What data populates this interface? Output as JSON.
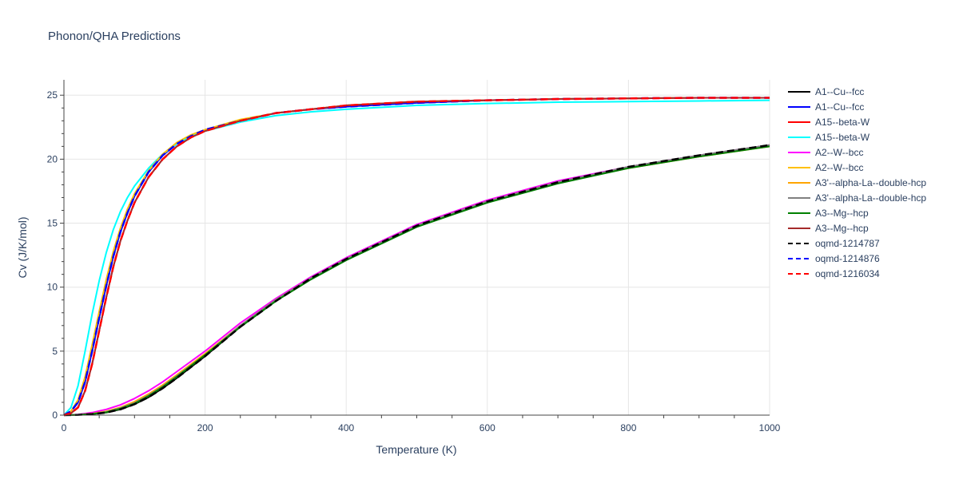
{
  "chart_data": {
    "type": "line",
    "title": "Phonon/QHA Predictions",
    "xlabel": "Temperature (K)",
    "ylabel": "Cv (J/K/mol)",
    "xlim": [
      0,
      1000
    ],
    "ylim": [
      0,
      26.2
    ],
    "xticks": [
      0,
      200,
      400,
      600,
      800,
      1000
    ],
    "yticks": [
      0,
      5,
      10,
      15,
      20,
      25
    ],
    "grid": true,
    "legend_position": "right",
    "series": [
      {
        "name": "A1--Cu--fcc",
        "color": "#000000",
        "dash": "solid",
        "x": [
          0,
          20,
          40,
          60,
          80,
          100,
          120,
          140,
          160,
          200,
          250,
          300,
          350,
          400,
          500,
          600,
          700,
          800,
          900,
          1000
        ],
        "y": [
          0,
          0.02,
          0.08,
          0.2,
          0.45,
          0.85,
          1.4,
          2.1,
          2.9,
          4.6,
          6.9,
          8.9,
          10.7,
          12.2,
          14.8,
          16.7,
          18.2,
          19.4,
          20.3,
          21.1
        ]
      },
      {
        "name": "A1--Cu--fcc",
        "color": "#0000ff",
        "dash": "solid",
        "x": [
          0,
          10,
          20,
          30,
          40,
          50,
          60,
          70,
          80,
          90,
          100,
          120,
          140,
          160,
          180,
          200,
          250,
          300,
          350,
          400,
          500,
          600,
          700,
          800,
          900,
          1000
        ],
        "y": [
          0,
          0.3,
          1.0,
          2.6,
          5.0,
          7.6,
          10.1,
          12.4,
          14.3,
          15.8,
          17.1,
          19.0,
          20.3,
          21.2,
          21.8,
          22.3,
          23.0,
          23.6,
          23.9,
          24.1,
          24.4,
          24.6,
          24.7,
          24.75,
          24.8,
          24.8
        ]
      },
      {
        "name": "A15--beta-W",
        "color": "#ff0000",
        "dash": "solid",
        "x": [
          0,
          10,
          20,
          30,
          40,
          50,
          60,
          70,
          80,
          90,
          100,
          120,
          140,
          160,
          180,
          200,
          250,
          300,
          350,
          400,
          500,
          600,
          700,
          800,
          900,
          1000
        ],
        "y": [
          0,
          0.15,
          0.6,
          1.9,
          4.0,
          6.6,
          9.2,
          11.6,
          13.6,
          15.2,
          16.6,
          18.6,
          20.0,
          21.0,
          21.7,
          22.2,
          23.0,
          23.6,
          23.9,
          24.2,
          24.5,
          24.6,
          24.7,
          24.75,
          24.8,
          24.8
        ]
      },
      {
        "name": "A15--beta-W",
        "color": "#00ffff",
        "dash": "solid",
        "x": [
          0,
          10,
          20,
          30,
          40,
          50,
          60,
          70,
          80,
          90,
          100,
          120,
          140,
          160,
          180,
          200,
          250,
          300,
          350,
          400,
          500,
          600,
          700,
          800,
          900,
          1000
        ],
        "y": [
          0,
          0.6,
          2.3,
          5.0,
          7.9,
          10.5,
          12.7,
          14.5,
          15.9,
          17.0,
          17.9,
          19.3,
          20.4,
          21.2,
          21.8,
          22.2,
          22.9,
          23.4,
          23.7,
          23.9,
          24.2,
          24.35,
          24.45,
          24.5,
          24.55,
          24.6
        ]
      },
      {
        "name": "A2--W--bcc",
        "color": "#ff00ff",
        "dash": "solid",
        "x": [
          0,
          20,
          40,
          60,
          80,
          100,
          120,
          140,
          160,
          200,
          250,
          300,
          350,
          400,
          500,
          600,
          700,
          800,
          900,
          1000
        ],
        "y": [
          0,
          0.05,
          0.2,
          0.45,
          0.8,
          1.3,
          1.9,
          2.6,
          3.4,
          5.0,
          7.2,
          9.1,
          10.8,
          12.3,
          14.9,
          16.8,
          18.3,
          19.4,
          20.3,
          21.1
        ]
      },
      {
        "name": "A2--W--bcc",
        "color": "#ffc000",
        "dash": "solid",
        "x": [
          0,
          10,
          20,
          30,
          40,
          50,
          60,
          70,
          80,
          90,
          100,
          120,
          140,
          160,
          180,
          200,
          250,
          300,
          350,
          400,
          500,
          600,
          700,
          800,
          900,
          1000
        ],
        "y": [
          0,
          0.3,
          1.2,
          3.0,
          5.5,
          8.1,
          10.6,
          12.8,
          14.6,
          16.1,
          17.3,
          19.1,
          20.4,
          21.3,
          21.9,
          22.3,
          23.1,
          23.6,
          23.9,
          24.2,
          24.5,
          24.6,
          24.7,
          24.75,
          24.8,
          24.8
        ]
      },
      {
        "name": "A3'--alpha-La--double-hcp",
        "color": "#ffa500",
        "dash": "solid",
        "x": [
          0,
          20,
          40,
          60,
          80,
          100,
          120,
          140,
          160,
          200,
          250,
          300,
          350,
          400,
          500,
          600,
          700,
          800,
          900,
          1000
        ],
        "y": [
          0,
          0.03,
          0.12,
          0.3,
          0.6,
          1.05,
          1.65,
          2.35,
          3.15,
          4.8,
          7.0,
          9.0,
          10.7,
          12.2,
          14.8,
          16.7,
          18.2,
          19.3,
          20.2,
          21.0
        ]
      },
      {
        "name": "A3'--alpha-La--double-hcp",
        "color": "#808080",
        "dash": "solid",
        "x": [
          0,
          20,
          40,
          60,
          80,
          100,
          120,
          140,
          160,
          200,
          250,
          300,
          350,
          400,
          500,
          600,
          700,
          800,
          900,
          1000
        ],
        "y": [
          0,
          0.03,
          0.1,
          0.25,
          0.55,
          0.95,
          1.55,
          2.25,
          3.05,
          4.7,
          7.0,
          9.0,
          10.7,
          12.2,
          14.8,
          16.7,
          18.2,
          19.4,
          20.3,
          21.1
        ]
      },
      {
        "name": "A3--Mg--hcp",
        "color": "#008000",
        "dash": "solid",
        "x": [
          0,
          20,
          40,
          60,
          80,
          100,
          120,
          140,
          160,
          200,
          250,
          300,
          350,
          400,
          500,
          600,
          700,
          800,
          900,
          1000
        ],
        "y": [
          0,
          0.02,
          0.09,
          0.22,
          0.5,
          0.9,
          1.5,
          2.2,
          3.0,
          4.7,
          6.9,
          8.9,
          10.6,
          12.1,
          14.7,
          16.6,
          18.1,
          19.3,
          20.2,
          21.0
        ]
      },
      {
        "name": "A3--Mg--hcp",
        "color": "#a52a2a",
        "dash": "solid",
        "x": [
          0,
          10,
          20,
          30,
          40,
          50,
          60,
          70,
          80,
          90,
          100,
          120,
          140,
          160,
          180,
          200,
          250,
          300,
          350,
          400,
          500,
          600,
          700,
          800,
          900,
          1000
        ],
        "y": [
          0,
          0.15,
          0.6,
          1.9,
          4.0,
          6.6,
          9.2,
          11.6,
          13.6,
          15.2,
          16.6,
          18.6,
          20.0,
          21.0,
          21.7,
          22.2,
          23.0,
          23.6,
          23.9,
          24.2,
          24.5,
          24.6,
          24.7,
          24.75,
          24.8,
          24.8
        ]
      },
      {
        "name": "oqmd-1214787",
        "color": "#000000",
        "dash": "dash",
        "x": [
          0,
          20,
          40,
          60,
          80,
          100,
          120,
          140,
          160,
          200,
          250,
          300,
          350,
          400,
          500,
          600,
          700,
          800,
          900,
          1000
        ],
        "y": [
          0,
          0.02,
          0.08,
          0.2,
          0.45,
          0.85,
          1.4,
          2.1,
          2.9,
          4.6,
          6.9,
          8.9,
          10.7,
          12.2,
          14.8,
          16.7,
          18.2,
          19.4,
          20.3,
          21.1
        ]
      },
      {
        "name": "oqmd-1214876",
        "color": "#0000ff",
        "dash": "dash",
        "x": [
          0,
          10,
          20,
          30,
          40,
          50,
          60,
          70,
          80,
          90,
          100,
          120,
          140,
          160,
          180,
          200,
          250,
          300,
          350,
          400,
          500,
          600,
          700,
          800,
          900,
          1000
        ],
        "y": [
          0,
          0.3,
          1.0,
          2.6,
          5.0,
          7.6,
          10.1,
          12.4,
          14.3,
          15.8,
          17.1,
          19.0,
          20.3,
          21.2,
          21.8,
          22.3,
          23.0,
          23.6,
          23.9,
          24.1,
          24.4,
          24.6,
          24.7,
          24.75,
          24.8,
          24.8
        ]
      },
      {
        "name": "oqmd-1216034",
        "color": "#ff0000",
        "dash": "dash",
        "x": [
          0,
          10,
          20,
          30,
          40,
          50,
          60,
          70,
          80,
          90,
          100,
          120,
          140,
          160,
          180,
          200,
          250,
          300,
          350,
          400,
          500,
          600,
          700,
          800,
          900,
          1000
        ],
        "y": [
          0,
          0.15,
          0.6,
          1.9,
          4.0,
          6.6,
          9.2,
          11.6,
          13.6,
          15.2,
          16.6,
          18.6,
          20.0,
          21.0,
          21.7,
          22.2,
          23.0,
          23.6,
          23.9,
          24.2,
          24.5,
          24.6,
          24.7,
          24.75,
          24.8,
          24.8
        ]
      }
    ]
  }
}
